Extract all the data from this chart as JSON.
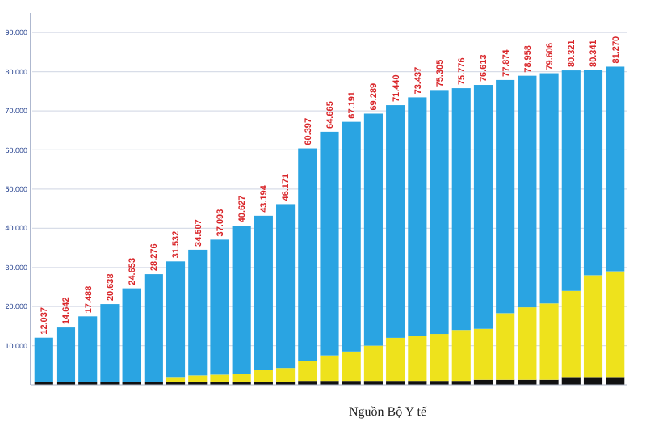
{
  "chart_data": {
    "type": "bar",
    "stacked": true,
    "categories": [
      null,
      null,
      null,
      null,
      null,
      null,
      null,
      null,
      null,
      null,
      null,
      null,
      null,
      null,
      null,
      null,
      null,
      null,
      null,
      null,
      null,
      null,
      null,
      null,
      null,
      null,
      null
    ],
    "series": [
      {
        "color": "#111111",
        "values": [
          800,
          800,
          800,
          800,
          800,
          800,
          800,
          800,
          800,
          800,
          800,
          800,
          1000,
          1000,
          1000,
          1000,
          1000,
          1000,
          1000,
          1000,
          1300,
          1300,
          1300,
          1300,
          2000,
          2000,
          2000
        ]
      },
      {
        "color": "#eee21c",
        "values": [
          0,
          0,
          0,
          0,
          0,
          0,
          1200,
          1600,
          1800,
          2000,
          3000,
          3500,
          5000,
          6500,
          7500,
          9000,
          11000,
          11500,
          12000,
          13000,
          13000,
          17000,
          18500,
          19500,
          22000,
          26000,
          27000
        ]
      },
      {
        "color": "#2aa4e2",
        "values": [
          11237,
          13842,
          16688,
          19838,
          23853,
          27476,
          29532,
          32107,
          34493,
          37827,
          39394,
          41871,
          54397,
          57165,
          58691,
          59289,
          59440,
          60937,
          62305,
          61776,
          62313,
          59574,
          59158,
          58806,
          56321,
          52341,
          52270
        ]
      }
    ],
    "totals": [
      "12.037",
      "14.642",
      "17.488",
      "20.638",
      "24.653",
      "28.276",
      "31.532",
      "34.507",
      "37.093",
      "40.627",
      "43.194",
      "46.171",
      "60.397",
      "64.665",
      "67.191",
      "69.289",
      "71.440",
      "73.437",
      "75.305",
      "75.776",
      "76.613",
      "77.874",
      "78.958",
      "79.606",
      "80.321",
      "80.341",
      "81.270"
    ],
    "ylim": [
      0,
      95000
    ],
    "yticks": [
      {
        "value": 10000,
        "label": "10.000"
      },
      {
        "value": 20000,
        "label": "20.000"
      },
      {
        "value": 30000,
        "label": "30.000"
      },
      {
        "value": 40000,
        "label": "40.000"
      },
      {
        "value": 50000,
        "label": "50.000"
      },
      {
        "value": 60000,
        "label": "60.000"
      },
      {
        "value": 70000,
        "label": "70.000"
      },
      {
        "value": 80000,
        "label": "80.000"
      },
      {
        "value": 90000,
        "label": "90.000"
      }
    ],
    "grid": "y",
    "annotations": [
      "Nguồn Bộ Y tế"
    ]
  }
}
